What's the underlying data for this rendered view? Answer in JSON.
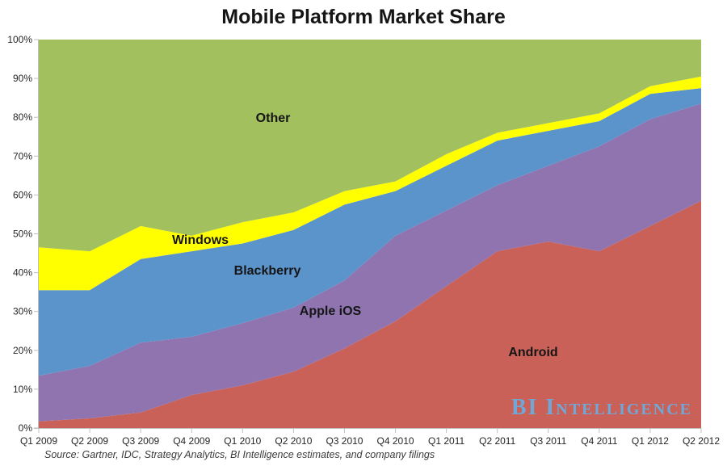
{
  "chart_data": {
    "type": "area",
    "stacked": true,
    "normalized_percent": true,
    "title": "Mobile Platform Market Share",
    "xlabel": "",
    "ylabel": "",
    "ylim": [
      0,
      100
    ],
    "grid": false,
    "legend_position": "labels-inside-plot",
    "categories": [
      "Q1 2009",
      "Q2 2009",
      "Q3 2009",
      "Q4 2009",
      "Q1 2010",
      "Q2 2010",
      "Q3 2010",
      "Q4 2010",
      "Q1 2011",
      "Q2 2011",
      "Q3 2011",
      "Q4 2011",
      "Q1 2012",
      "Q2 2012"
    ],
    "stack_order": "bottom-to-top",
    "series": [
      {
        "name": "Android",
        "color": "#C96158",
        "values": [
          1.7,
          2.5,
          4.0,
          8.5,
          11.0,
          14.5,
          20.5,
          27.5,
          36.5,
          45.5,
          48.0,
          45.5,
          52.0,
          58.5
        ]
      },
      {
        "name": "Apple iOS",
        "color": "#8F74B0",
        "values": [
          11.8,
          13.5,
          18.0,
          15.0,
          16.0,
          16.5,
          17.5,
          22.0,
          19.5,
          17.0,
          19.5,
          27.0,
          27.5,
          25.0
        ]
      },
      {
        "name": "Blackberry",
        "color": "#5B93CB",
        "values": [
          22.0,
          19.5,
          21.5,
          22.0,
          20.5,
          20.0,
          19.5,
          11.5,
          11.5,
          11.5,
          9.0,
          6.5,
          6.5,
          4.0
        ]
      },
      {
        "name": "Windows",
        "color": "#FFFF00",
        "values": [
          11.0,
          10.0,
          8.5,
          4.0,
          5.5,
          4.5,
          3.5,
          2.5,
          3.0,
          2.0,
          2.0,
          2.0,
          2.0,
          3.0
        ]
      },
      {
        "name": "Other",
        "color": "#A2C05E",
        "values": [
          53.5,
          54.5,
          48.0,
          50.5,
          47.0,
          44.5,
          39.0,
          36.5,
          29.5,
          24.0,
          21.5,
          19.0,
          12.0,
          9.5
        ]
      }
    ],
    "y_tick_labels": [
      "0%",
      "10%",
      "20%",
      "30%",
      "40%",
      "50%",
      "60%",
      "70%",
      "80%",
      "90%",
      "100%"
    ]
  },
  "axis_colors": {
    "line": "#BFBFBF",
    "tick_text": "#262626"
  },
  "source_note": "Source: Gartner, IDC, Strategy Analytics, BI Intelligence estimates, and company filings",
  "branding": {
    "watermark": "BI Intelligence",
    "watermark_color": "#6FA8D6"
  }
}
